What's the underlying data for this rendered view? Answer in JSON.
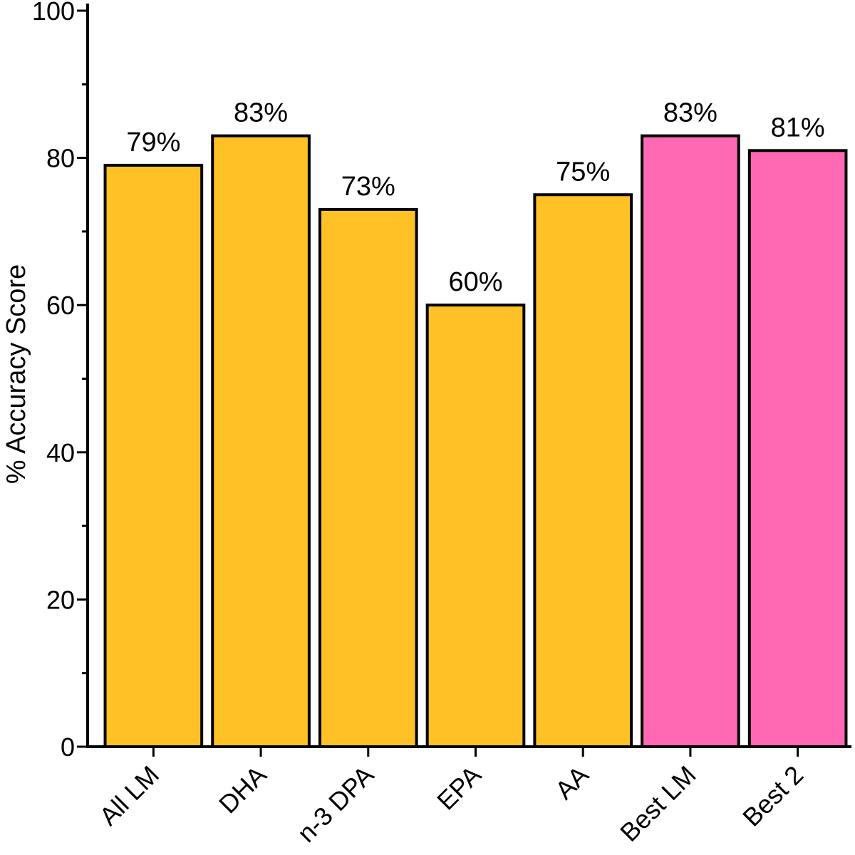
{
  "chart_data": {
    "type": "bar",
    "title": "",
    "xlabel": "",
    "ylabel": "% Accuracy Score",
    "ylim": [
      0,
      100
    ],
    "yticks": [
      0,
      20,
      40,
      60,
      80,
      100
    ],
    "grid": false,
    "legend": "none",
    "categories": [
      "All LM",
      "DHA",
      "n-3 DPA",
      "EPA",
      "AA",
      "Best LM",
      "Best 2"
    ],
    "values": [
      79,
      83,
      73,
      60,
      75,
      83,
      81
    ],
    "data_labels": [
      "79%",
      "83%",
      "73%",
      "60%",
      "75%",
      "83%",
      "81%"
    ],
    "bar_colors": [
      "#FFC125",
      "#FFC125",
      "#FFC125",
      "#FFC125",
      "#FFC125",
      "#FF69B4",
      "#FF69B4"
    ],
    "outline_color": "#000000"
  }
}
